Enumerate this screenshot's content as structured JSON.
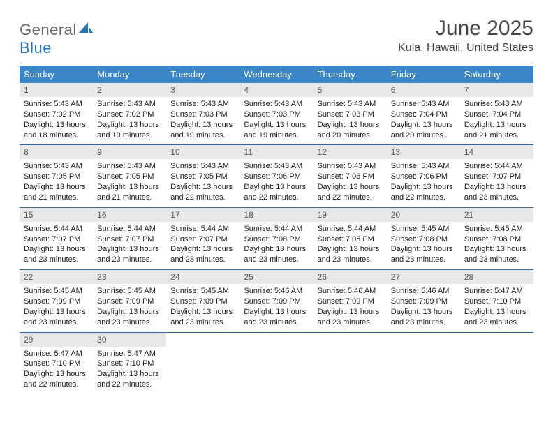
{
  "logo": {
    "general": "General",
    "blue": "Blue"
  },
  "title": "June 2025",
  "location": "Kula, Hawaii, United States",
  "colors": {
    "header_bg": "#3b86c6",
    "header_text": "#ffffff",
    "daynum_bg": "#e8e8e8",
    "row_divider": "#2d6aa3",
    "logo_gray": "#6b6b6b",
    "logo_blue": "#2d74b5"
  },
  "columns": [
    "Sunday",
    "Monday",
    "Tuesday",
    "Wednesday",
    "Thursday",
    "Friday",
    "Saturday"
  ],
  "days": [
    {
      "n": "1",
      "sr": "5:43 AM",
      "ss": "7:02 PM",
      "dl": "13 hours and 18 minutes."
    },
    {
      "n": "2",
      "sr": "5:43 AM",
      "ss": "7:02 PM",
      "dl": "13 hours and 19 minutes."
    },
    {
      "n": "3",
      "sr": "5:43 AM",
      "ss": "7:03 PM",
      "dl": "13 hours and 19 minutes."
    },
    {
      "n": "4",
      "sr": "5:43 AM",
      "ss": "7:03 PM",
      "dl": "13 hours and 19 minutes."
    },
    {
      "n": "5",
      "sr": "5:43 AM",
      "ss": "7:03 PM",
      "dl": "13 hours and 20 minutes."
    },
    {
      "n": "6",
      "sr": "5:43 AM",
      "ss": "7:04 PM",
      "dl": "13 hours and 20 minutes."
    },
    {
      "n": "7",
      "sr": "5:43 AM",
      "ss": "7:04 PM",
      "dl": "13 hours and 21 minutes."
    },
    {
      "n": "8",
      "sr": "5:43 AM",
      "ss": "7:05 PM",
      "dl": "13 hours and 21 minutes."
    },
    {
      "n": "9",
      "sr": "5:43 AM",
      "ss": "7:05 PM",
      "dl": "13 hours and 21 minutes."
    },
    {
      "n": "10",
      "sr": "5:43 AM",
      "ss": "7:05 PM",
      "dl": "13 hours and 22 minutes."
    },
    {
      "n": "11",
      "sr": "5:43 AM",
      "ss": "7:06 PM",
      "dl": "13 hours and 22 minutes."
    },
    {
      "n": "12",
      "sr": "5:43 AM",
      "ss": "7:06 PM",
      "dl": "13 hours and 22 minutes."
    },
    {
      "n": "13",
      "sr": "5:43 AM",
      "ss": "7:06 PM",
      "dl": "13 hours and 22 minutes."
    },
    {
      "n": "14",
      "sr": "5:44 AM",
      "ss": "7:07 PM",
      "dl": "13 hours and 23 minutes."
    },
    {
      "n": "15",
      "sr": "5:44 AM",
      "ss": "7:07 PM",
      "dl": "13 hours and 23 minutes."
    },
    {
      "n": "16",
      "sr": "5:44 AM",
      "ss": "7:07 PM",
      "dl": "13 hours and 23 minutes."
    },
    {
      "n": "17",
      "sr": "5:44 AM",
      "ss": "7:07 PM",
      "dl": "13 hours and 23 minutes."
    },
    {
      "n": "18",
      "sr": "5:44 AM",
      "ss": "7:08 PM",
      "dl": "13 hours and 23 minutes."
    },
    {
      "n": "19",
      "sr": "5:44 AM",
      "ss": "7:08 PM",
      "dl": "13 hours and 23 minutes."
    },
    {
      "n": "20",
      "sr": "5:45 AM",
      "ss": "7:08 PM",
      "dl": "13 hours and 23 minutes."
    },
    {
      "n": "21",
      "sr": "5:45 AM",
      "ss": "7:08 PM",
      "dl": "13 hours and 23 minutes."
    },
    {
      "n": "22",
      "sr": "5:45 AM",
      "ss": "7:09 PM",
      "dl": "13 hours and 23 minutes."
    },
    {
      "n": "23",
      "sr": "5:45 AM",
      "ss": "7:09 PM",
      "dl": "13 hours and 23 minutes."
    },
    {
      "n": "24",
      "sr": "5:45 AM",
      "ss": "7:09 PM",
      "dl": "13 hours and 23 minutes."
    },
    {
      "n": "25",
      "sr": "5:46 AM",
      "ss": "7:09 PM",
      "dl": "13 hours and 23 minutes."
    },
    {
      "n": "26",
      "sr": "5:46 AM",
      "ss": "7:09 PM",
      "dl": "13 hours and 23 minutes."
    },
    {
      "n": "27",
      "sr": "5:46 AM",
      "ss": "7:09 PM",
      "dl": "13 hours and 23 minutes."
    },
    {
      "n": "28",
      "sr": "5:47 AM",
      "ss": "7:10 PM",
      "dl": "13 hours and 23 minutes."
    },
    {
      "n": "29",
      "sr": "5:47 AM",
      "ss": "7:10 PM",
      "dl": "13 hours and 22 minutes."
    },
    {
      "n": "30",
      "sr": "5:47 AM",
      "ss": "7:10 PM",
      "dl": "13 hours and 22 minutes."
    }
  ],
  "labels": {
    "sunrise": "Sunrise:",
    "sunset": "Sunset:",
    "daylight": "Daylight:"
  }
}
